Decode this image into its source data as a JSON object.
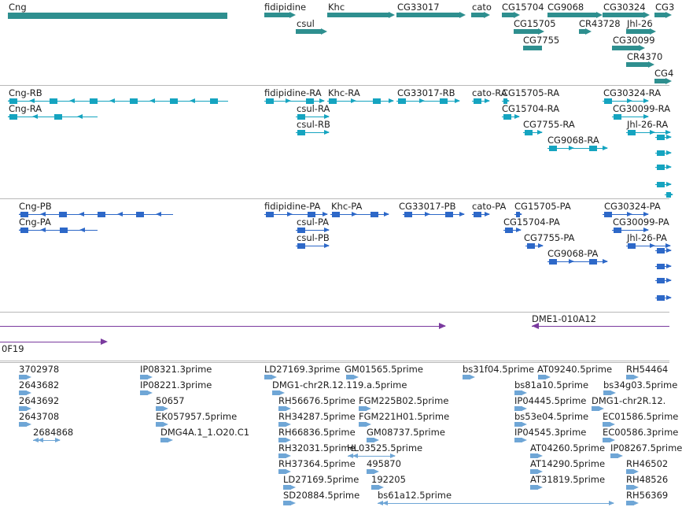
{
  "tracks": [
    {
      "id": "genes",
      "color": "#2e8f8f",
      "labels": [
        "Cng",
        "fidipidine",
        "Khc",
        "CG33017",
        "cato",
        "CG15704",
        "CG9068",
        "CG30324",
        "CG3",
        "csul",
        "CG15705",
        "CR43728",
        "Jhl-26",
        "CG7755",
        "CG30099",
        "CR4370",
        "CG4"
      ]
    },
    {
      "id": "transcripts",
      "color": "#15a4c0",
      "labels": [
        "Cng-RB",
        "Cng-RA",
        "fidipidine-RA",
        "Khc-RA",
        "CG33017-RB",
        "cato-RA",
        "CG15705-RA",
        "CG30324-RA",
        "csul-RA",
        "csul-RB",
        "CG15704-RA",
        "CG30099-RA",
        "CG7755-RA",
        "Jhl-26-RA",
        "CG9068-RA"
      ]
    },
    {
      "id": "proteins",
      "color": "#2d68c8",
      "labels": [
        "Cng-PB",
        "Cng-PA",
        "fidipidine-PA",
        "Khc-PA",
        "CG33017-PB",
        "cato-PA",
        "CG15705-PA",
        "CG30324-PA",
        "csul-PA",
        "csul-PB",
        "CG15704-PA",
        "CG30099-PA",
        "CG7755-PA",
        "Jhl-26-PA",
        "CG9068-PA"
      ]
    },
    {
      "id": "clones",
      "color": "#7a3a9e",
      "labels": [
        "DME1-010A12",
        "0F19"
      ]
    },
    {
      "id": "ests",
      "color": "#6fa6d6",
      "labels": [
        "3702978",
        "2643682",
        "2643692",
        "2643708",
        "2684868",
        "IP08321.3prime",
        "IP08221.3prime",
        "50657",
        "EK057957.5prime",
        "DMG4A.1_1.O20.C1",
        "LD27169.3prime",
        "GM01565.5prime",
        "DMG1-chr2R.12.119.a.5prime",
        "RH56676.5prime",
        "FGM225B02.5prime",
        "RH34287.5prime",
        "FGM221H01.5prime",
        "RH66836.5prime",
        "GM08737.5prime",
        "RH32031.5prime",
        "HL03525.5prime",
        "RH37364.5prime",
        "495870",
        "LD27169.5prime",
        "192205",
        "SD20884.5prime",
        "bs61a12.5prime",
        "bs31f04.5prime",
        "AT09240.5prime",
        "RH54464",
        "bs81a10.5prime",
        "bs34g03.5prime",
        "IP04445.5prime",
        "DMG1-chr2R.12.",
        "bs53e04.5prime",
        "EC01586.5prime",
        "IP04545.3prime",
        "EC00586.3prime",
        "AT04260.5prime",
        "IP08267.5prime",
        "AT14290.5prime",
        "RH46502",
        "AT31819.5prime",
        "RH48526",
        "RH56369"
      ]
    }
  ]
}
